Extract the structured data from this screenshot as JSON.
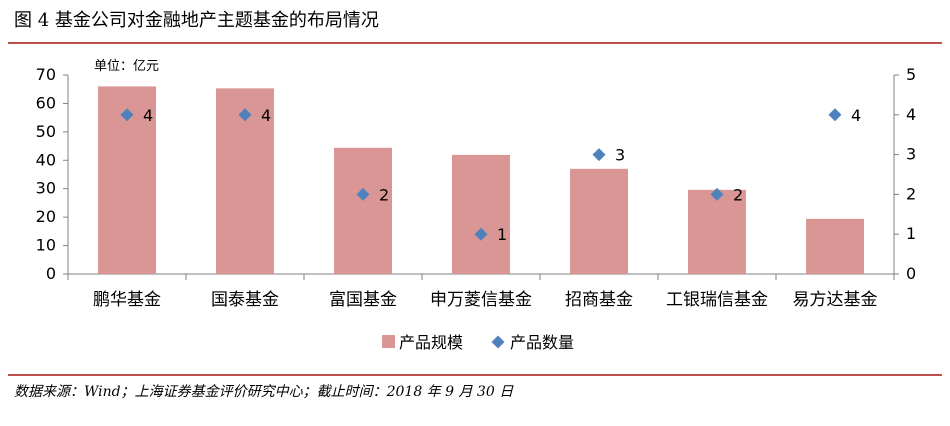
{
  "figure": {
    "title": "图 4  基金公司对金融地产主题基金的布局情况",
    "unit_note": "单位：亿元",
    "footer": "数据来源：Wind；上海证券基金评价研究中心；截止时间：2018 年 9 月 30 日"
  },
  "colors": {
    "bar": "#d99694",
    "marker": "#4f81bd",
    "accent": "#c0504d",
    "axis": "#808080"
  },
  "chart_data": {
    "type": "bar",
    "categories": [
      "鹏华基金",
      "国泰基金",
      "富国基金",
      "申万菱信基金",
      "招商基金",
      "工银瑞信基金",
      "易方达基金"
    ],
    "series": [
      {
        "name": "产品规模",
        "type": "bar",
        "axis": "left",
        "values": [
          66,
          65.3,
          44.4,
          41.9,
          37,
          29.6,
          19.4
        ]
      },
      {
        "name": "产品数量",
        "type": "scatter",
        "axis": "right",
        "values": [
          4,
          4,
          2,
          1,
          3,
          2,
          4
        ],
        "labels": [
          "4",
          "4",
          "2",
          "1",
          "3",
          "2",
          "4"
        ]
      }
    ],
    "y_left": {
      "min": 0,
      "max": 70,
      "ticks": [
        "0",
        "10",
        "20",
        "30",
        "40",
        "50",
        "60",
        "70"
      ]
    },
    "y_right": {
      "min": 0,
      "max": 5,
      "ticks": [
        "0",
        "1",
        "2",
        "3",
        "4",
        "5"
      ]
    },
    "grid": false,
    "legend_position": "bottom"
  }
}
